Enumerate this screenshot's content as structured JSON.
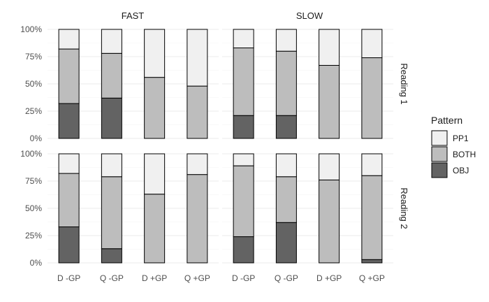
{
  "chart_data": {
    "type": "bar",
    "stacked": true,
    "facet_columns": [
      "FAST",
      "SLOW"
    ],
    "facet_rows": [
      "Reading 1",
      "Reading 2"
    ],
    "categories": [
      "D -GP",
      "Q -GP",
      "D +GP",
      "Q +GP"
    ],
    "y_ticks": [
      "0%",
      "25%",
      "50%",
      "75%",
      "100%"
    ],
    "ylim": [
      0,
      1
    ],
    "grid": true,
    "legend": {
      "title": "Pattern",
      "position": "right",
      "items": [
        {
          "name": "PP1",
          "color": "#f0f0f0"
        },
        {
          "name": "BOTH",
          "color": "#bdbdbd"
        },
        {
          "name": "OBJ",
          "color": "#636363"
        }
      ]
    },
    "panels": [
      {
        "column": "FAST",
        "row": "Reading 1",
        "series": [
          {
            "name": "OBJ",
            "values": [
              0.32,
              0.37,
              0.0,
              0.0
            ]
          },
          {
            "name": "BOTH",
            "values": [
              0.5,
              0.41,
              0.56,
              0.48
            ]
          },
          {
            "name": "PP1",
            "values": [
              0.18,
              0.22,
              0.44,
              0.52
            ]
          }
        ]
      },
      {
        "column": "SLOW",
        "row": "Reading 1",
        "series": [
          {
            "name": "OBJ",
            "values": [
              0.21,
              0.21,
              0.0,
              0.0
            ]
          },
          {
            "name": "BOTH",
            "values": [
              0.62,
              0.59,
              0.67,
              0.74
            ]
          },
          {
            "name": "PP1",
            "values": [
              0.17,
              0.2,
              0.33,
              0.26
            ]
          }
        ]
      },
      {
        "column": "FAST",
        "row": "Reading 2",
        "series": [
          {
            "name": "OBJ",
            "values": [
              0.33,
              0.13,
              0.0,
              0.0
            ]
          },
          {
            "name": "BOTH",
            "values": [
              0.49,
              0.66,
              0.63,
              0.81
            ]
          },
          {
            "name": "PP1",
            "values": [
              0.18,
              0.21,
              0.37,
              0.19
            ]
          }
        ]
      },
      {
        "column": "SLOW",
        "row": "Reading 2",
        "series": [
          {
            "name": "OBJ",
            "values": [
              0.24,
              0.37,
              0.0,
              0.03
            ]
          },
          {
            "name": "BOTH",
            "values": [
              0.65,
              0.42,
              0.76,
              0.77
            ]
          },
          {
            "name": "PP1",
            "values": [
              0.11,
              0.21,
              0.24,
              0.2
            ]
          }
        ]
      }
    ]
  }
}
